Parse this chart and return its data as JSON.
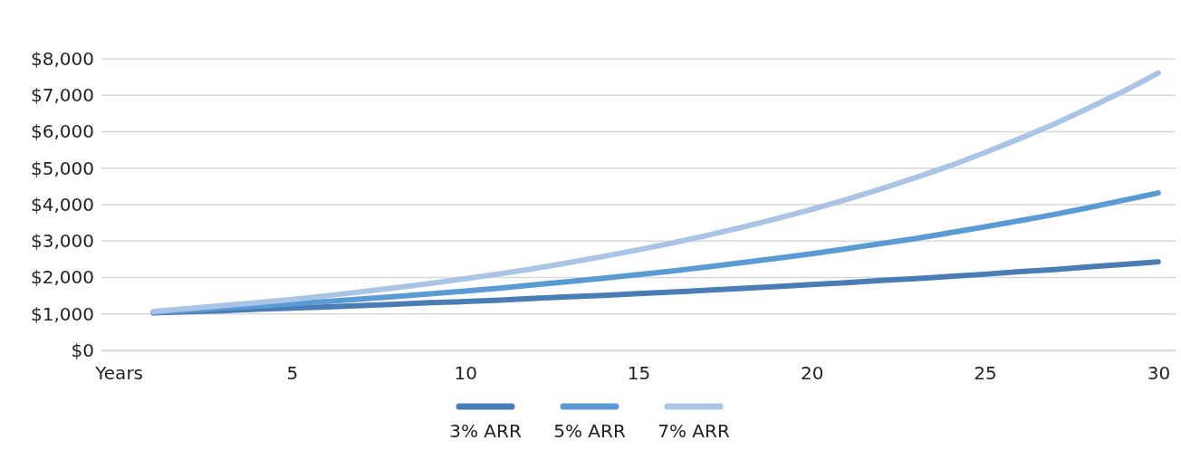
{
  "chart_data": {
    "type": "line",
    "x": [
      1,
      2,
      3,
      4,
      5,
      6,
      7,
      8,
      9,
      10,
      11,
      12,
      13,
      14,
      15,
      16,
      17,
      18,
      19,
      20,
      21,
      22,
      23,
      24,
      25,
      26,
      27,
      28,
      29,
      30
    ],
    "xlim": [
      -0.5,
      30.5
    ],
    "xticks": [
      {
        "value": 0,
        "label": "Years"
      },
      5,
      10,
      15,
      20,
      25,
      30
    ],
    "ylim": [
      0,
      8000
    ],
    "yticks": [
      {
        "value": 0,
        "label": "$0"
      },
      {
        "value": 1000,
        "label": "$1,000"
      },
      {
        "value": 2000,
        "label": "$2,000"
      },
      {
        "value": 3000,
        "label": "$3,000"
      },
      {
        "value": 4000,
        "label": "$4,000"
      },
      {
        "value": 5000,
        "label": "$5,000"
      },
      {
        "value": 6000,
        "label": "$6,000"
      },
      {
        "value": 7000,
        "label": "$7,000"
      },
      {
        "value": 8000,
        "label": "$8,000"
      }
    ],
    "grid": "y",
    "legend": "bottom",
    "marker": "none",
    "line_style": "solid",
    "series": [
      {
        "name": "3% ARR",
        "color": "#4a7db5",
        "values": [
          1030,
          1060,
          1090,
          1130,
          1160,
          1190,
          1230,
          1270,
          1310,
          1340,
          1380,
          1430,
          1470,
          1510,
          1560,
          1600,
          1650,
          1700,
          1750,
          1810,
          1860,
          1920,
          1970,
          2030,
          2090,
          2160,
          2220,
          2290,
          2360,
          2430
        ]
      },
      {
        "name": "5% ARR",
        "color": "#5b9bd5",
        "values": [
          1050,
          1100,
          1160,
          1220,
          1280,
          1340,
          1410,
          1480,
          1550,
          1630,
          1710,
          1800,
          1890,
          1980,
          2080,
          2180,
          2290,
          2410,
          2530,
          2650,
          2790,
          2930,
          3070,
          3230,
          3390,
          3560,
          3730,
          3920,
          4120,
          4320
        ]
      },
      {
        "name": "7% ARR",
        "color": "#a9c4e4",
        "values": [
          1070,
          1150,
          1230,
          1310,
          1400,
          1500,
          1610,
          1720,
          1840,
          1970,
          2100,
          2250,
          2410,
          2580,
          2760,
          2950,
          3160,
          3380,
          3620,
          3870,
          4140,
          4430,
          4740,
          5070,
          5430,
          5810,
          6210,
          6650,
          7110,
          7610
        ]
      }
    ]
  }
}
